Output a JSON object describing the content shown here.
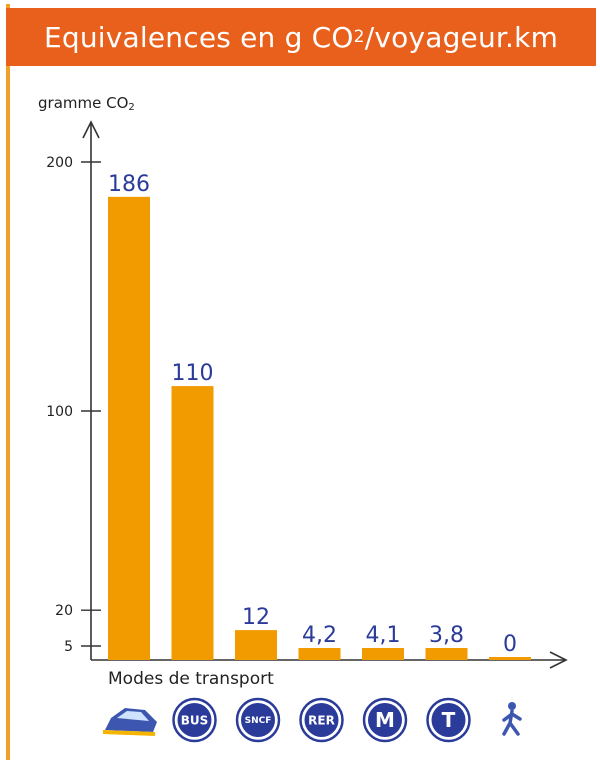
{
  "title": {
    "main": "Equivalences en g CO",
    "sub": "2",
    "suffix": "/voyageur.km"
  },
  "colors": {
    "title_bg": "#e8601c",
    "bar": "#f29b00",
    "value_text": "#2a3b9a",
    "icon": "#2a3b9a"
  },
  "icons": [
    {
      "name": "car-icon",
      "text": ""
    },
    {
      "name": "bus-icon",
      "text": "BUS"
    },
    {
      "name": "sncf-icon",
      "text": "SNCF"
    },
    {
      "name": "rer-icon",
      "text": "RER"
    },
    {
      "name": "metro-icon",
      "text": "M"
    },
    {
      "name": "tram-icon",
      "text": "T"
    },
    {
      "name": "walk-icon",
      "text": ""
    }
  ],
  "chart_data": {
    "type": "bar",
    "title": "Equivalences en g CO2/voyageur.km",
    "ylabel_main": "gramme CO",
    "ylabel_sub": "2",
    "xlabel": "Modes de transport",
    "categories": [
      "Voiture",
      "Bus",
      "SNCF",
      "RER",
      "Métro",
      "Tramway",
      "Marche"
    ],
    "values": [
      186,
      110,
      12,
      4.2,
      4.1,
      3.8,
      0
    ],
    "value_labels": [
      "186",
      "110",
      "12",
      "4,2",
      "4,1",
      "3,8",
      "0"
    ],
    "yticks": [
      5,
      20,
      100,
      200
    ],
    "ytick_labels": [
      "5",
      "20",
      "100",
      "200"
    ],
    "ylim": [
      0,
      200
    ],
    "grid": false
  }
}
